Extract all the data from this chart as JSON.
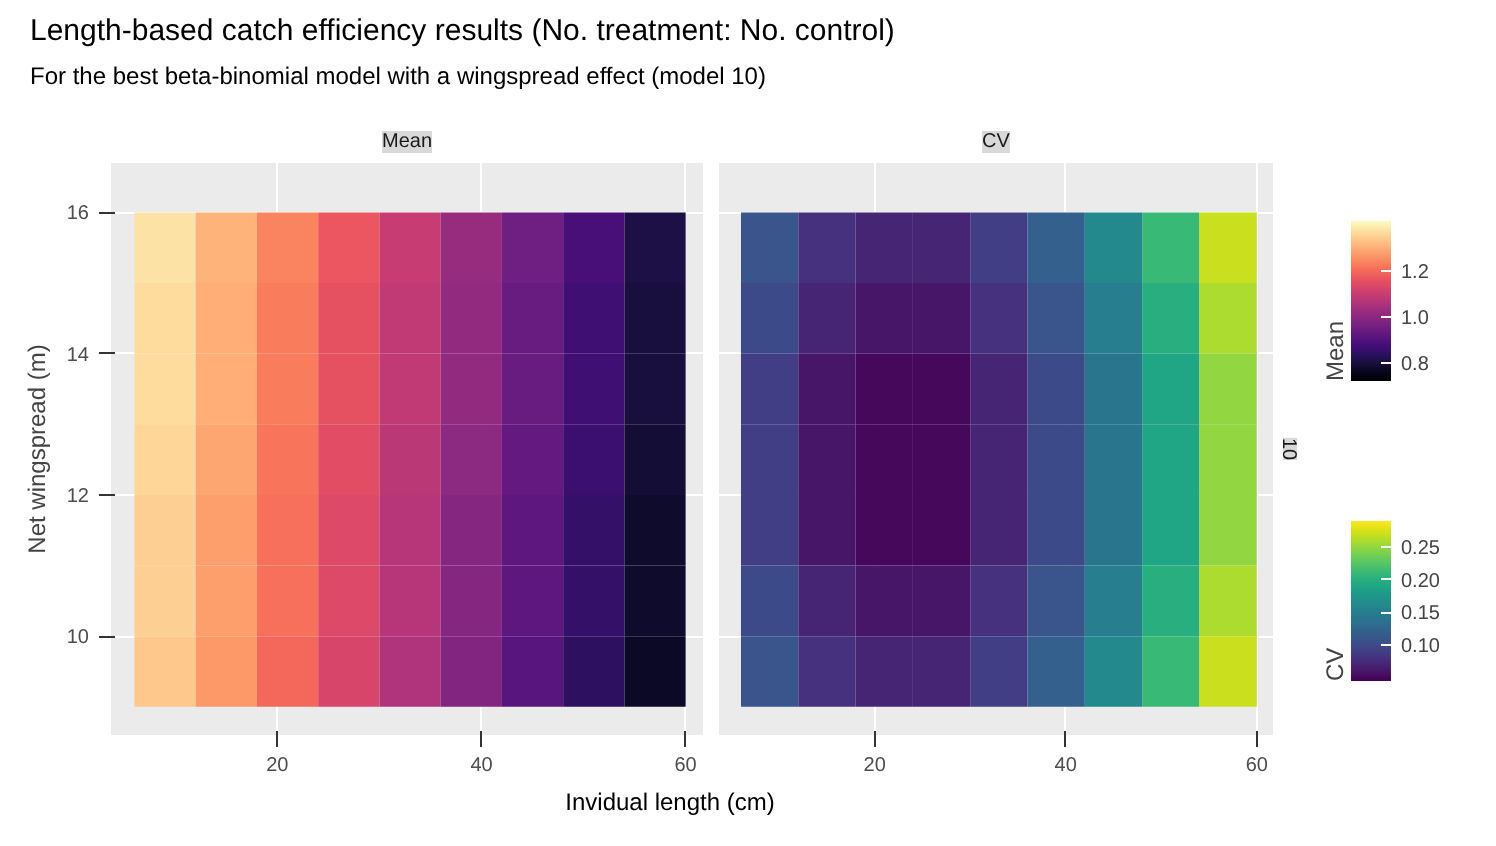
{
  "chart_data": [
    {
      "type": "heatmap",
      "title": "Length-based catch efficiency results (No. treatment: No. control)",
      "subtitle": "For the best beta-binomial model with a wingspread effect (model 10)",
      "annotations": [
        "Mean"
      ],
      "xlabel": "Invidual length (cm)",
      "ylabel": "Net wingspread (m)",
      "clabel": "Mean",
      "x": [
        9,
        15,
        21,
        27,
        33,
        39,
        45,
        51,
        57
      ],
      "y": [
        15.5,
        14.5,
        13.5,
        12.5,
        11.5,
        10.5,
        9.5
      ],
      "cells": [
        [
          1.38,
          1.31,
          1.24,
          1.17,
          1.1,
          1.02,
          0.95,
          0.88,
          0.81
        ],
        [
          1.37,
          1.3,
          1.23,
          1.16,
          1.09,
          1.01,
          0.94,
          0.87,
          0.8
        ],
        [
          1.37,
          1.3,
          1.23,
          1.16,
          1.09,
          1.01,
          0.94,
          0.87,
          0.8
        ],
        [
          1.36,
          1.29,
          1.22,
          1.15,
          1.08,
          1.0,
          0.93,
          0.86,
          0.79
        ],
        [
          1.35,
          1.28,
          1.21,
          1.14,
          1.07,
          0.99,
          0.92,
          0.85,
          0.78
        ],
        [
          1.35,
          1.28,
          1.21,
          1.14,
          1.07,
          0.99,
          0.92,
          0.85,
          0.78
        ],
        [
          1.34,
          1.27,
          1.2,
          1.13,
          1.06,
          0.98,
          0.91,
          0.84,
          0.77
        ]
      ],
      "clim": [
        0.72,
        1.42
      ],
      "cticks": [
        0.8,
        {
          "value": 1.0,
          "label": "1.0"
        },
        1.2
      ],
      "xlim": [
        3.7,
        61.7
      ],
      "ylim": [
        8.6,
        16.7
      ],
      "xticks": [
        20,
        40,
        60
      ],
      "yticks": [
        10,
        12,
        14,
        16
      ],
      "grid": true
    },
    {
      "type": "heatmap",
      "title": "CV",
      "annotations": [
        "10"
      ],
      "clabel": "CV",
      "x": [
        9,
        15,
        21,
        27,
        33,
        39,
        45,
        51,
        57
      ],
      "y": [
        15.5,
        14.5,
        13.5,
        12.5,
        11.5,
        10.5,
        9.5
      ],
      "cells": [
        [
          0.11,
          0.08,
          0.07,
          0.07,
          0.09,
          0.12,
          0.16,
          0.21,
          0.27
        ],
        [
          0.1,
          0.07,
          0.06,
          0.06,
          0.08,
          0.11,
          0.15,
          0.2,
          0.26
        ],
        [
          0.09,
          0.06,
          0.05,
          0.05,
          0.07,
          0.1,
          0.14,
          0.19,
          0.25
        ],
        [
          0.09,
          0.06,
          0.05,
          0.05,
          0.07,
          0.1,
          0.14,
          0.19,
          0.25
        ],
        [
          0.09,
          0.06,
          0.05,
          0.05,
          0.07,
          0.1,
          0.14,
          0.19,
          0.25
        ],
        [
          0.1,
          0.07,
          0.06,
          0.06,
          0.08,
          0.11,
          0.15,
          0.2,
          0.26
        ],
        [
          0.11,
          0.08,
          0.07,
          0.07,
          0.09,
          0.12,
          0.16,
          0.21,
          0.27
        ]
      ],
      "clim": [
        0.045,
        0.29
      ],
      "cticks": [
        {
          "value": 0.1,
          "label": "0.10"
        },
        0.15,
        {
          "value": 0.2,
          "label": "0.20"
        },
        0.25
      ],
      "xlim": [
        3.7,
        61.7
      ],
      "ylim": [
        8.6,
        16.7
      ],
      "xticks": [
        20,
        40,
        60
      ],
      "yticks": [
        10,
        12,
        14,
        16
      ],
      "grid": true,
      "tick_labels": "x"
    }
  ]
}
